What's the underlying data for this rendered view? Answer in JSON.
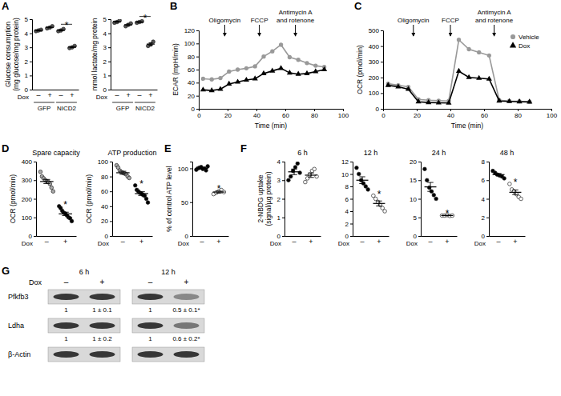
{
  "chart_data": [
    {
      "panel": "A",
      "type": "dot",
      "ylabel": [
        "Glucose consumption",
        "(mg glucose/mg protein)"
      ],
      "xlabel": "Dox",
      "categories": [
        "–",
        "+",
        "–",
        "+"
      ],
      "groups": [
        "GFP",
        "NICD2"
      ],
      "points": [
        [
          4.15,
          4.2,
          4.25
        ],
        [
          4.35,
          4.4,
          4.5
        ],
        [
          4.15,
          4.2,
          4.3
        ],
        [
          2.95,
          3.0,
          3.1
        ]
      ],
      "means": [
        4.2,
        4.42,
        4.22,
        3.02
      ],
      "errors": [
        0.03,
        0.04,
        0.04,
        0.04
      ],
      "colors": [
        "#555555",
        "#555555",
        "#555555",
        "#555555"
      ],
      "ylim": [
        0,
        5
      ],
      "yticks": [
        0,
        1,
        2,
        3,
        4,
        5
      ],
      "annotations": [
        {
          "text": "*",
          "categories": [
            2,
            3
          ]
        }
      ]
    },
    {
      "type": "dot",
      "ylabel": "mmol lactate/mg protein",
      "xlabel": "Dox",
      "categories": [
        "–",
        "+",
        "–",
        "+"
      ],
      "groups": [
        "GFP",
        "NICD2"
      ],
      "points": [
        [
          4.75,
          4.8,
          4.9
        ],
        [
          4.5,
          4.6,
          4.7
        ],
        [
          4.75,
          4.8,
          4.85
        ],
        [
          3.1,
          3.2,
          3.4
        ]
      ],
      "means": [
        4.82,
        4.6,
        4.8,
        3.23
      ],
      "errors": [
        0.04,
        0.06,
        0.03,
        0.09
      ],
      "colors": [
        "#555555",
        "#555555",
        "#555555",
        "#555555"
      ],
      "ylim": [
        0,
        5
      ],
      "yticks": [
        0,
        1,
        2,
        3,
        4,
        5
      ],
      "annotations": [
        {
          "text": "*",
          "categories": [
            2,
            3
          ]
        }
      ]
    },
    {
      "panel": "B",
      "type": "line",
      "xlabel": "Time (min)",
      "ylabel": "ECAR (mpH/min)",
      "x": [
        3,
        9,
        15,
        21,
        27,
        33,
        39,
        45,
        51,
        57,
        63,
        69,
        75,
        81,
        87
      ],
      "series": [
        {
          "color": "#999999",
          "marker": "circle",
          "values": [
            46,
            45,
            47,
            57,
            60,
            62,
            65,
            80,
            88,
            98,
            79,
            75,
            70,
            66,
            64
          ]
        },
        {
          "color": "#000000",
          "marker": "triangle",
          "values": [
            29,
            28,
            30,
            38,
            41,
            44,
            46,
            54,
            58,
            62,
            55,
            53,
            54,
            57,
            60
          ]
        }
      ],
      "xlim": [
        0,
        100
      ],
      "xticks": [
        0,
        20,
        40,
        60,
        80,
        100
      ],
      "ylim": [
        0,
        120
      ],
      "yticks": [
        0,
        20,
        40,
        60,
        80,
        100,
        120
      ],
      "annotations": [
        {
          "text": [
            "Oligomycin"
          ],
          "x": 18
        },
        {
          "text": [
            "FCCP"
          ],
          "x": 42
        },
        {
          "text": [
            "Antimycin A",
            "and rotenone"
          ],
          "x": 67
        }
      ]
    },
    {
      "panel": "C",
      "type": "line",
      "xlabel": "Time (min)",
      "ylabel": "OCR (pmol/min)",
      "x": [
        3,
        9,
        15,
        21,
        27,
        33,
        39,
        45,
        51,
        57,
        63,
        69,
        75,
        81,
        87
      ],
      "series": [
        {
          "name": "Vehicle",
          "color": "#999999",
          "marker": "circle",
          "values": [
            160,
            150,
            140,
            60,
            55,
            52,
            50,
            440,
            380,
            360,
            340,
            55,
            50,
            48,
            45
          ]
        },
        {
          "name": "Dox",
          "color": "#000000",
          "marker": "triangle",
          "values": [
            150,
            140,
            125,
            45,
            40,
            38,
            37,
            240,
            200,
            195,
            190,
            50,
            47,
            45,
            44
          ]
        }
      ],
      "xlim": [
        0,
        100
      ],
      "xticks": [
        0,
        20,
        40,
        60,
        80,
        100
      ],
      "ylim": [
        0,
        500
      ],
      "yticks": [
        0,
        100,
        200,
        300,
        400,
        500
      ],
      "legend": "upper right",
      "annotations": [
        {
          "text": [
            "Oligomycin"
          ],
          "x": 18
        },
        {
          "text": [
            "FCCP"
          ],
          "x": 40
        },
        {
          "text": [
            "Antimycin A",
            "and rotenone"
          ],
          "x": 66
        }
      ]
    },
    {
      "panel": "D",
      "type": "dot",
      "title": "Spare capacity",
      "ylabel": "OCR (pmol/min)",
      "xlabel": "Dox",
      "categories": [
        "–",
        "+"
      ],
      "points": [
        [
          345,
          320,
          310,
          300,
          295,
          290,
          280,
          260,
          240
        ],
        [
          160,
          150,
          135,
          125,
          120,
          110,
          100,
          95,
          80
        ]
      ],
      "means": [
        293,
        119
      ],
      "errors": [
        11,
        9
      ],
      "colors": [
        "#aaaaaa",
        "#000000"
      ],
      "ylim": [
        0,
        400
      ],
      "yticks": [
        0,
        100,
        200,
        300,
        400
      ],
      "annotations": [
        {
          "text": "*",
          "categories": [
            1
          ]
        }
      ]
    },
    {
      "type": "dot",
      "title": "ATP production",
      "ylabel": "OCR (pmol/min)",
      "xlabel": "Dox",
      "categories": [
        "–",
        "+"
      ],
      "points": [
        [
          95,
          92,
          88,
          86,
          85,
          84,
          83,
          80,
          78
        ],
        [
          68,
          62,
          60,
          58,
          57,
          55,
          54,
          50,
          45
        ]
      ],
      "means": [
        85,
        57
      ],
      "errors": [
        2,
        2.5
      ],
      "colors": [
        "#aaaaaa",
        "#000000"
      ],
      "ylim": [
        0,
        100
      ],
      "yticks": [
        0,
        20,
        40,
        60,
        80,
        100
      ],
      "annotations": [
        {
          "text": "*",
          "categories": [
            1
          ]
        }
      ]
    },
    {
      "panel": "E",
      "type": "dot",
      "ylabel": "% of control ATP level",
      "xlabel": "Dox",
      "categories": [
        "–",
        "+"
      ],
      "points": [
        [
          98,
          100,
          101,
          102,
          99,
          100,
          97,
          103
        ],
        [
          62,
          64,
          66,
          68,
          65
        ]
      ],
      "means": [
        100,
        65
      ],
      "errors": [
        1,
        1.5
      ],
      "colors": [
        "#000000",
        "#ffffff"
      ],
      "ylim": [
        0,
        110
      ],
      "yticks": [
        0,
        50,
        100
      ],
      "annotations": [
        {
          "text": "*",
          "categories": [
            1
          ]
        }
      ]
    },
    {
      "panel": "F",
      "type": "dot",
      "title": "6 h",
      "ylabel": [
        "2-NBDG uptake",
        "(signal/µg protein)"
      ],
      "xlabel": "Dox",
      "categories": [
        "–",
        "+"
      ],
      "points": [
        [
          3.0,
          3.2,
          3.5,
          3.7,
          3.9,
          3.4
        ],
        [
          2.9,
          3.1,
          3.3,
          3.5,
          3.6,
          3.2
        ]
      ],
      "means": [
        3.45,
        3.27
      ],
      "errors": [
        0.15,
        0.12
      ],
      "colors": [
        "#000000",
        "#ffffff"
      ],
      "ylim": [
        0,
        4
      ],
      "yticks": [
        0,
        1,
        2,
        3,
        4
      ]
    },
    {
      "type": "dot",
      "title": "12 h",
      "xlabel": "Dox",
      "categories": [
        "–",
        "+"
      ],
      "points": [
        [
          11,
          10,
          9,
          8.5,
          8,
          7.5
        ],
        [
          6.5,
          6,
          5.5,
          5,
          4.5,
          4
        ]
      ],
      "means": [
        9,
        5.25
      ],
      "errors": [
        0.55,
        0.4
      ],
      "colors": [
        "#000000",
        "#ffffff"
      ],
      "ylim": [
        0,
        12
      ],
      "yticks": [
        0,
        2,
        4,
        6,
        8,
        10,
        12
      ],
      "annotations": [
        {
          "text": "*",
          "categories": [
            1
          ]
        }
      ]
    },
    {
      "type": "dot",
      "title": "24 h",
      "xlabel": "Dox",
      "categories": [
        "–",
        "+"
      ],
      "points": [
        [
          18,
          15,
          13,
          12,
          11,
          10
        ],
        [
          5.5,
          5.5,
          5.6,
          5.4,
          5.5
        ]
      ],
      "means": [
        13.2,
        5.5
      ],
      "errors": [
        1.2,
        0.05
      ],
      "colors": [
        "#000000",
        "#ffffff"
      ],
      "ylim": [
        0,
        20
      ],
      "yticks": [
        0,
        5,
        10,
        15,
        20
      ],
      "annotations": [
        {
          "text": "*",
          "categories": [
            1
          ]
        }
      ]
    },
    {
      "type": "dot",
      "title": "48 h",
      "xlabel": "Dox",
      "categories": [
        "–",
        "+"
      ],
      "points": [
        [
          7,
          6.8,
          6.6,
          6.5,
          6.4,
          6.2
        ],
        [
          5.6,
          5.0,
          4.8,
          4.5,
          4.2,
          4.0
        ]
      ],
      "means": [
        6.6,
        4.7
      ],
      "errors": [
        0.12,
        0.25
      ],
      "colors": [
        "#000000",
        "#ffffff"
      ],
      "ylim": [
        0,
        8
      ],
      "yticks": [
        0,
        2,
        4,
        6,
        8
      ],
      "annotations": [
        {
          "text": "*",
          "categories": [
            1
          ]
        }
      ]
    }
  ],
  "blot": {
    "panel": "G",
    "timepoints": [
      "6 h",
      "12 h"
    ],
    "label": "Dox",
    "lanes": [
      "–",
      "+",
      "–",
      "+"
    ],
    "rows": [
      {
        "name": "Pfkfb3",
        "quant": [
          "1",
          "1 ± 0.1",
          "1",
          "0.5 ± 0.1*"
        ]
      },
      {
        "name": "Ldha",
        "quant": [
          "1",
          "1 ± 0.2",
          "1",
          "0.6 ± 0.2*"
        ]
      },
      {
        "name": "β-Actin"
      }
    ]
  }
}
